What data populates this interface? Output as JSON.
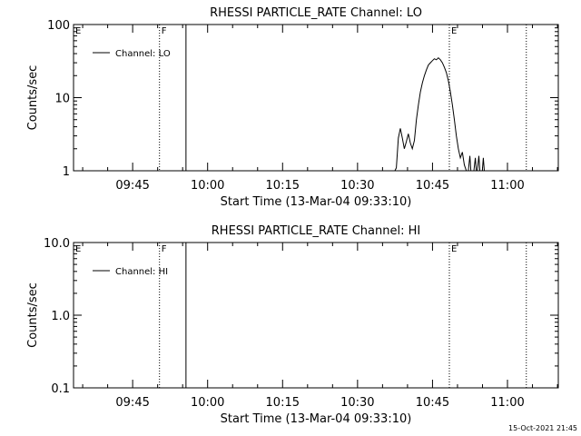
{
  "chart_data": [
    {
      "type": "line",
      "title": "RHESSI PARTICLE_RATE Channel: LO",
      "xlabel": "Start Time (13-Mar-04 09:33:10)",
      "ylabel": "Counts/sec",
      "x_unit": "minutes from 09:33:10",
      "xlim": [
        0,
        97
      ],
      "ylim": [
        1,
        100
      ],
      "yscale": "log",
      "x_ticks": [
        {
          "t": 11.83,
          "label": "09:45"
        },
        {
          "t": 26.83,
          "label": "10:00"
        },
        {
          "t": 41.83,
          "label": "10:15"
        },
        {
          "t": 56.83,
          "label": "10:30"
        },
        {
          "t": 71.83,
          "label": "10:45"
        },
        {
          "t": 86.83,
          "label": "11:00"
        }
      ],
      "y_ticks": [
        {
          "v": 1,
          "label": "1"
        },
        {
          "v": 10,
          "label": "10"
        },
        {
          "v": 100,
          "label": "100"
        }
      ],
      "legend": {
        "entries": [
          "Channel: LO"
        ],
        "placement": "top-left"
      },
      "markers": [
        {
          "t": 0,
          "label": "E",
          "style": "dotted"
        },
        {
          "t": 17.2,
          "label": "F",
          "style": "dotted"
        },
        {
          "t": 22.5,
          "label": "",
          "style": "solid"
        },
        {
          "t": 75.2,
          "label": "E",
          "style": "dotted"
        },
        {
          "t": 90.6,
          "label": "",
          "style": "dotted"
        }
      ],
      "series": [
        {
          "name": "Channel: LO",
          "x": [
            64.3,
            64.6,
            65.0,
            65.4,
            65.8,
            66.2,
            66.6,
            67.0,
            67.4,
            67.8,
            68.2,
            68.6,
            69.0,
            69.4,
            69.8,
            70.2,
            70.6,
            71.0,
            71.4,
            71.8,
            72.2,
            72.6,
            73.0,
            73.4,
            73.8,
            74.2,
            74.6,
            75.0,
            75.4,
            75.8,
            76.2,
            76.6,
            77.0,
            77.4,
            77.8,
            78.2,
            78.6,
            79.0,
            79.3,
            79.5,
            79.8,
            80.1,
            80.4,
            80.6,
            80.8,
            81.1,
            81.3,
            81.5,
            81.8,
            82.0,
            82.2,
            82.4
          ],
          "y": [
            1,
            1.1,
            2.8,
            3.8,
            2.8,
            2.0,
            2.5,
            3.2,
            2.4,
            2.0,
            2.6,
            5.0,
            8.0,
            12,
            16,
            20,
            24,
            28,
            30,
            32,
            34,
            33,
            35,
            33,
            30,
            26,
            22,
            17,
            12,
            8,
            5,
            3,
            2.0,
            1.5,
            1.8,
            1.2,
            1.0,
            1.0,
            1.6,
            1.0,
            1.0,
            1.0,
            1.5,
            1.0,
            1.0,
            1.6,
            1.0,
            1.0,
            1.0,
            1.5,
            1.0,
            1.0
          ]
        }
      ]
    },
    {
      "type": "line",
      "title": "RHESSI PARTICLE_RATE Channel: HI",
      "xlabel": "Start Time (13-Mar-04 09:33:10)",
      "ylabel": "Counts/sec",
      "x_unit": "minutes from 09:33:10",
      "xlim": [
        0,
        97
      ],
      "ylim": [
        0.1,
        10.0
      ],
      "yscale": "log",
      "x_ticks": [
        {
          "t": 11.83,
          "label": "09:45"
        },
        {
          "t": 26.83,
          "label": "10:00"
        },
        {
          "t": 41.83,
          "label": "10:15"
        },
        {
          "t": 56.83,
          "label": "10:30"
        },
        {
          "t": 71.83,
          "label": "10:45"
        },
        {
          "t": 86.83,
          "label": "11:00"
        }
      ],
      "y_ticks": [
        {
          "v": 0.1,
          "label": "0.1"
        },
        {
          "v": 1.0,
          "label": "1.0"
        },
        {
          "v": 10.0,
          "label": "10.0"
        }
      ],
      "legend": {
        "entries": [
          "Channel: HI"
        ],
        "placement": "top-left"
      },
      "markers": [
        {
          "t": 0,
          "label": "E",
          "style": "dotted"
        },
        {
          "t": 17.2,
          "label": "F",
          "style": "dotted"
        },
        {
          "t": 22.5,
          "label": "",
          "style": "solid"
        },
        {
          "t": 75.2,
          "label": "E",
          "style": "dotted"
        },
        {
          "t": 90.6,
          "label": "",
          "style": "dotted"
        }
      ],
      "series": [
        {
          "name": "Channel: HI",
          "x": [],
          "y": []
        }
      ]
    }
  ],
  "footer": {
    "timestamp": "15-Oct-2021 21:45"
  }
}
